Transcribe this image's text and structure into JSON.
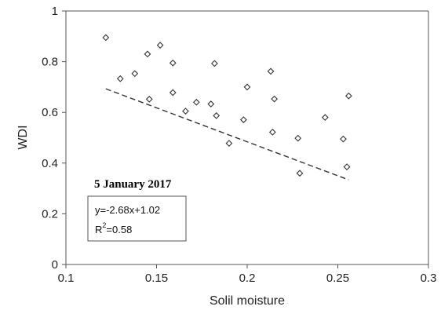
{
  "chart_data": {
    "type": "scatter",
    "xlabel": "Solil moisture",
    "ylabel": "WDI",
    "xlim": [
      0.1,
      0.3
    ],
    "ylim": [
      0,
      1
    ],
    "x_ticks": [
      "0.1",
      "0.15",
      "0.2",
      "0.25",
      "0.3"
    ],
    "x_tick_values": [
      0.1,
      0.15,
      0.2,
      0.25,
      0.3
    ],
    "y_ticks": [
      "0",
      "0.2",
      "0.4",
      "0.6",
      "0.8",
      "1"
    ],
    "y_tick_values": [
      0,
      0.2,
      0.4,
      0.6,
      0.8,
      1
    ],
    "grid": false,
    "marker": "diamond",
    "points": [
      {
        "x": 0.122,
        "y": 0.895
      },
      {
        "x": 0.13,
        "y": 0.733
      },
      {
        "x": 0.138,
        "y": 0.753
      },
      {
        "x": 0.145,
        "y": 0.83
      },
      {
        "x": 0.146,
        "y": 0.652
      },
      {
        "x": 0.152,
        "y": 0.865
      },
      {
        "x": 0.159,
        "y": 0.795
      },
      {
        "x": 0.159,
        "y": 0.678
      },
      {
        "x": 0.166,
        "y": 0.605
      },
      {
        "x": 0.172,
        "y": 0.64
      },
      {
        "x": 0.18,
        "y": 0.633
      },
      {
        "x": 0.182,
        "y": 0.793
      },
      {
        "x": 0.183,
        "y": 0.587
      },
      {
        "x": 0.19,
        "y": 0.478
      },
      {
        "x": 0.198,
        "y": 0.571
      },
      {
        "x": 0.2,
        "y": 0.7
      },
      {
        "x": 0.213,
        "y": 0.762
      },
      {
        "x": 0.214,
        "y": 0.522
      },
      {
        "x": 0.215,
        "y": 0.653
      },
      {
        "x": 0.228,
        "y": 0.498
      },
      {
        "x": 0.229,
        "y": 0.36
      },
      {
        "x": 0.243,
        "y": 0.58
      },
      {
        "x": 0.253,
        "y": 0.495
      },
      {
        "x": 0.255,
        "y": 0.385
      },
      {
        "x": 0.256,
        "y": 0.665
      }
    ],
    "trendline": {
      "slope": -2.68,
      "intercept": 1.02,
      "x_range": [
        0.122,
        0.256
      ],
      "style": "dashed"
    },
    "annotations": {
      "date_label": "5 January 2017",
      "equation": "y=-2.68x+1.02",
      "r2_base": "R",
      "r2_sup": "2",
      "r2_value": "=0.58"
    }
  }
}
